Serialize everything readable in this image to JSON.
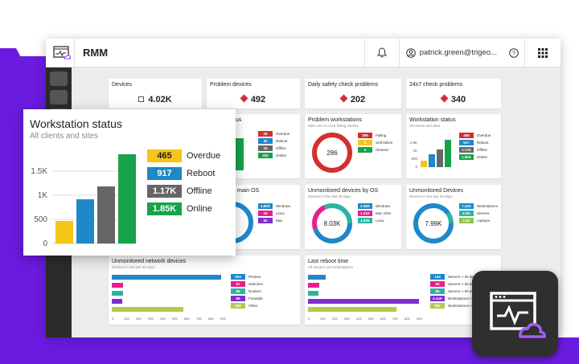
{
  "app": {
    "title": "RMM",
    "user": "patrick.green@trigeo..."
  },
  "colors": {
    "overdue": "#d32f2f",
    "reboot": "#1e88c8",
    "offline": "#666666",
    "online": "#16a34a",
    "accent_purple": "#6a1be0",
    "yellow": "#f5c518"
  },
  "stats": [
    {
      "title": "Devices",
      "value": "4.02K",
      "icon": "device-icon"
    },
    {
      "title": "Problem devices",
      "value": "492",
      "icon": "alert-diamond-icon"
    },
    {
      "title": "Daily safety check problems",
      "value": "202",
      "icon": "alert-diamond-icon"
    },
    {
      "title": "24x7 check problems",
      "value": "340",
      "icon": "alert-diamond-icon"
    }
  ],
  "workstation_status_small": {
    "title": "Workstation status",
    "subtitle": "All clients and sites",
    "legend": [
      {
        "value": "465",
        "label": "Overdue"
      },
      {
        "value": "917",
        "label": "Reboot"
      },
      {
        "value": "1.17K",
        "label": "Offline"
      },
      {
        "value": "1.85K",
        "label": "Online"
      }
    ],
    "yticks": [
      "1.5K",
      "1K",
      "500",
      "0"
    ]
  },
  "server_status_partial": {
    "title_fragment": "us",
    "legend": [
      {
        "value": "28",
        "label": "Overdue"
      },
      {
        "value": "30",
        "label": "Reboot"
      },
      {
        "value": "34",
        "label": "Offline"
      },
      {
        "value": "320",
        "label": "Online"
      }
    ]
  },
  "problem_workstations": {
    "title": "Problem workstations",
    "subtitle": "With one or more failing checks",
    "center": "286",
    "legend": [
      {
        "value": "286",
        "label": "Failing"
      },
      {
        "value": "5",
        "label": "Soft failure"
      },
      {
        "value": "0",
        "label": "Cleared"
      }
    ]
  },
  "main_os": {
    "title_fragment": "main OS",
    "legend": [
      {
        "value": "3.92K",
        "label": "Windows"
      },
      {
        "value": "15",
        "label": "Linux"
      },
      {
        "value": "83",
        "label": "Mac"
      }
    ]
  },
  "unmonitored_by_os": {
    "title": "Unmonitored devices by OS",
    "subtitle": "Devices in the last 30 days",
    "center": "8.03K",
    "legend": [
      {
        "value": "2.55K",
        "label": "Windows"
      },
      {
        "value": "1.31K",
        "label": "Mac OSX"
      },
      {
        "value": "1.82K",
        "label": "Linux"
      }
    ]
  },
  "unmonitored_devices": {
    "title": "Unmonitored Devices",
    "subtitle": "Devices in the last 30 days",
    "center": "7.99K",
    "legend": [
      {
        "value": "7.42K",
        "label": "Workstations"
      },
      {
        "value": "2.3K",
        "label": "Servers"
      },
      {
        "value": "3.4K",
        "label": "Laptops"
      }
    ]
  },
  "unmonitored_network": {
    "title": "Unmonitored network devices",
    "subtitle": "Devices in the last 30 days",
    "legend": [
      {
        "value": "904",
        "label": "Printers"
      },
      {
        "value": "97",
        "label": "Switches"
      },
      {
        "value": "95",
        "label": "Routers"
      },
      {
        "value": "85",
        "label": "Firewalls"
      },
      {
        "value": "592",
        "label": "Other"
      }
    ],
    "xticks": [
      "0",
      "100",
      "200",
      "300",
      "400",
      "500",
      "600",
      "700",
      "800",
      "900"
    ]
  },
  "last_reboot": {
    "title": "Last reboot time",
    "subtitle": "All servers and workstations",
    "legend": [
      {
        "value": "144",
        "label": "Servers > 30 days"
      },
      {
        "value": "95",
        "label": "Servers > 60 days"
      },
      {
        "value": "85",
        "label": "Servers > 90 days"
      },
      {
        "value": "4.14K",
        "label": "Workstations > 30 days"
      },
      {
        "value": "992",
        "label": "Workstations > 60 days"
      }
    ],
    "xticks": [
      "0",
      "100",
      "200",
      "300",
      "400",
      "500",
      "600",
      "700",
      "800",
      "900"
    ]
  },
  "zoom_card": {
    "title": "Workstation status",
    "subtitle": "All clients and sites",
    "legend": [
      {
        "value": "465",
        "label": "Overdue"
      },
      {
        "value": "917",
        "label": "Reboot"
      },
      {
        "value": "1.17K",
        "label": "Offline"
      },
      {
        "value": "1.85K",
        "label": "Online"
      }
    ],
    "yticks": [
      "1.5K",
      "1K",
      "500",
      "0"
    ]
  }
}
